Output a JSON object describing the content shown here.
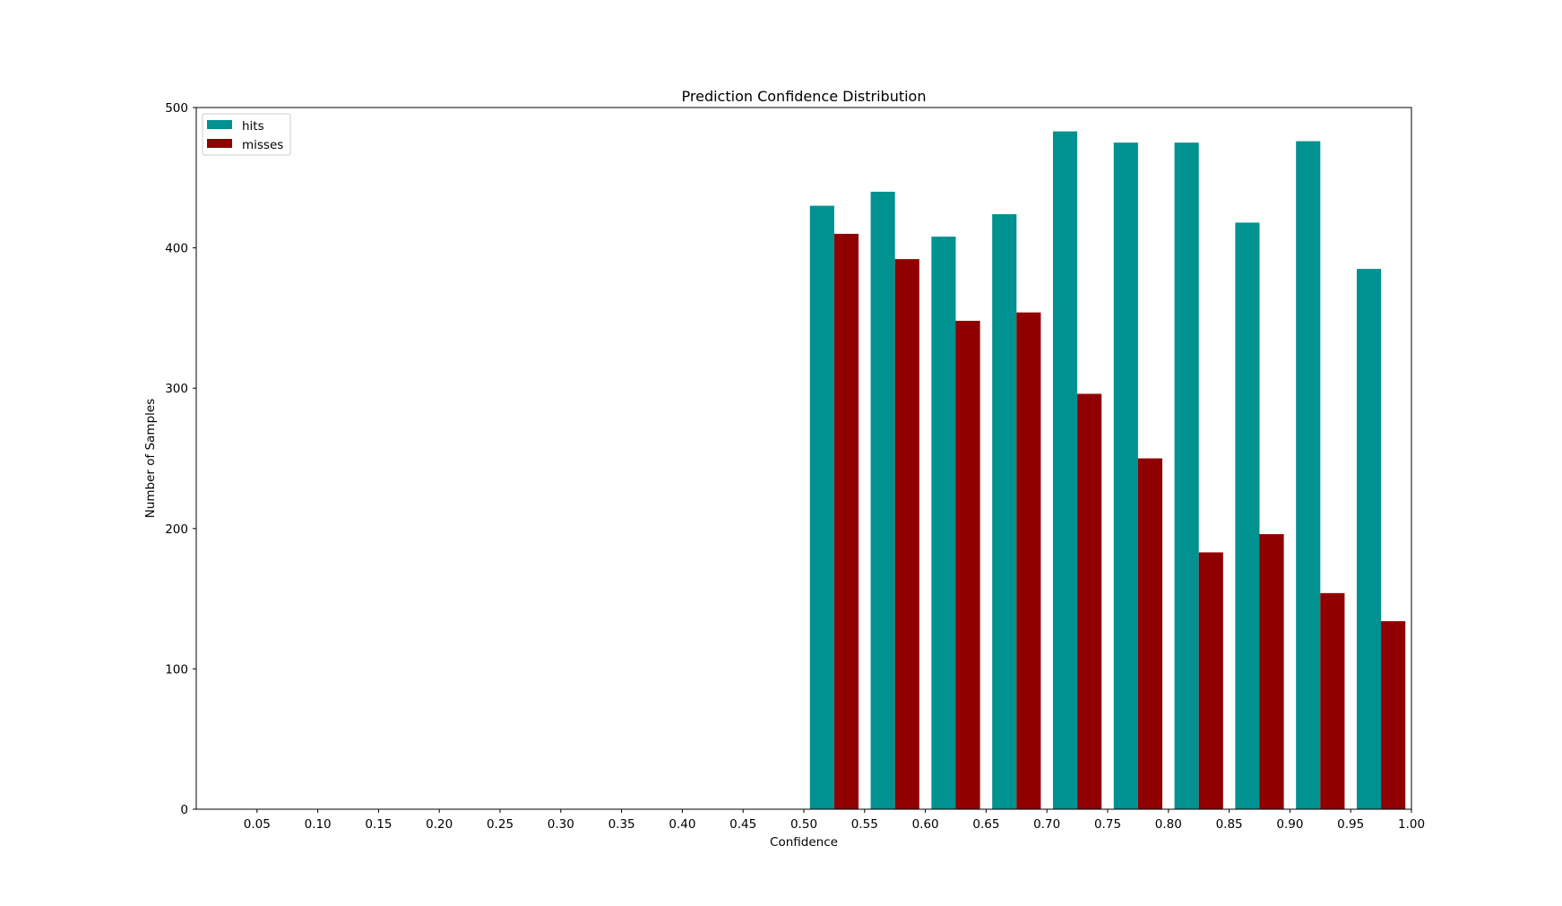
{
  "chart_data": {
    "type": "bar",
    "title": "Prediction Confidence Distribution",
    "xlabel": "Confidence",
    "ylabel": "Number of Samples",
    "xlim": [
      0.0,
      1.0
    ],
    "ylim": [
      0,
      500
    ],
    "x_ticks": [
      "0.05",
      "0.10",
      "0.15",
      "0.20",
      "0.25",
      "0.30",
      "0.35",
      "0.40",
      "0.45",
      "0.50",
      "0.55",
      "0.60",
      "0.65",
      "0.70",
      "0.75",
      "0.80",
      "0.85",
      "0.90",
      "0.95",
      "1.00"
    ],
    "y_ticks": [
      "0",
      "100",
      "200",
      "300",
      "400",
      "500"
    ],
    "legend": {
      "position": "top-left",
      "entries": [
        "hits",
        "misses"
      ]
    },
    "grid": false,
    "bin_edges": [
      0.5,
      0.55,
      0.6,
      0.65,
      0.7,
      0.75,
      0.8,
      0.85,
      0.9,
      0.95,
      1.0
    ],
    "series": [
      {
        "name": "hits",
        "color": "#009191",
        "values": [
          430,
          440,
          408,
          424,
          483,
          475,
          475,
          418,
          476,
          385
        ]
      },
      {
        "name": "misses",
        "color": "#910000",
        "values": [
          410,
          392,
          348,
          354,
          296,
          250,
          183,
          196,
          154,
          134
        ]
      }
    ]
  }
}
